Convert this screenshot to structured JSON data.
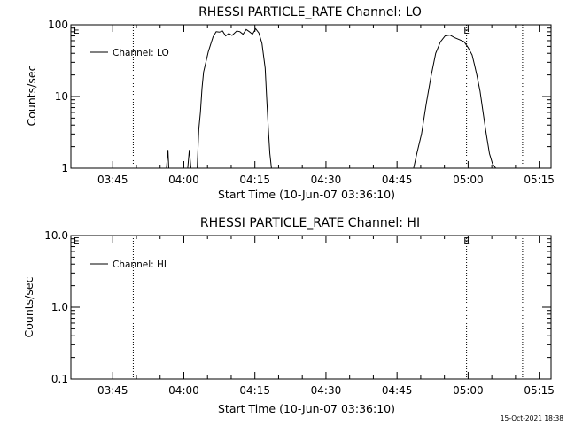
{
  "colors": {
    "background": "#ffffff",
    "foreground": "#000000"
  },
  "footer": {
    "timestamp": "15-Oct-2021 18:38"
  },
  "chart_data": [
    {
      "type": "line",
      "title": "RHESSI PARTICLE_RATE Channel: LO",
      "xlabel": "Start Time (10-Jun-07 03:36:10)",
      "ylabel": "Counts/sec",
      "yscale": "log",
      "xlim": [
        "03:36:10",
        "05:17:30"
      ],
      "ylim": [
        1,
        100
      ],
      "x_ticks": [
        "03:45",
        "04:00",
        "04:15",
        "04:30",
        "04:45",
        "05:00",
        "05:15"
      ],
      "y_ticks": [
        "1",
        "10",
        "100"
      ],
      "grid": false,
      "legend": {
        "placement": "top-left",
        "entries": [
          "Channel: LO"
        ]
      },
      "markers": [
        {
          "type": "dotted-vertical",
          "x": "03:49:20"
        },
        {
          "type": "dotted-vertical",
          "x": "04:59:40",
          "label": "E"
        },
        {
          "type": "dotted-vertical",
          "x": "05:11:30"
        }
      ],
      "corner_labels": [
        "E"
      ],
      "series": [
        {
          "name": "Channel: LO",
          "x": [
            "03:56:20",
            "03:56:40",
            "03:56:50",
            "03:57:00",
            "04:00:50",
            "04:01:10",
            "04:01:30",
            "04:01:40",
            "04:02:50",
            "04:03:00",
            "04:03:10",
            "04:03:30",
            "04:03:50",
            "04:04:10",
            "04:05:10",
            "04:06:10",
            "04:06:50",
            "04:07:30",
            "04:08:10",
            "04:08:50",
            "04:09:30",
            "04:10:10",
            "04:11:10",
            "04:11:50",
            "04:12:30",
            "04:13:10",
            "04:13:50",
            "04:14:30",
            "04:15:10",
            "04:15:50",
            "04:16:30",
            "04:17:10",
            "04:17:30",
            "04:17:50",
            "04:18:10",
            "04:18:30",
            "04:48:30",
            "04:49:10",
            "04:50:10",
            "04:51:10",
            "04:52:10",
            "04:53:10",
            "04:54:10",
            "04:55:10",
            "04:56:10",
            "04:57:10",
            "04:58:10",
            "04:59:10",
            "05:00:00",
            "05:00:50",
            "05:01:20",
            "05:01:50",
            "05:02:30",
            "05:03:10",
            "05:03:50",
            "05:04:30",
            "05:05:10",
            "05:05:50",
            "05:06:20"
          ],
          "y": [
            1,
            1.8,
            1,
            1,
            1,
            1.8,
            1,
            1,
            1,
            1.9,
            3.5,
            6,
            13,
            22,
            42,
            68,
            80,
            79,
            82,
            70,
            76,
            71,
            82,
            80,
            74,
            86,
            80,
            74,
            88,
            77,
            55,
            25,
            9,
            3.5,
            1.6,
            1,
            1,
            1.6,
            3,
            8,
            19,
            40,
            58,
            70,
            72,
            66,
            62,
            58,
            48,
            38,
            28,
            20,
            12,
            6,
            3,
            1.6,
            1.15,
            1,
            1
          ]
        }
      ]
    },
    {
      "type": "line",
      "title": "RHESSI PARTICLE_RATE Channel: HI",
      "xlabel": "Start Time (10-Jun-07 03:36:10)",
      "ylabel": "Counts/sec",
      "yscale": "log",
      "xlim": [
        "03:36:10",
        "05:17:30"
      ],
      "ylim": [
        0.1,
        10
      ],
      "x_ticks": [
        "03:45",
        "04:00",
        "04:15",
        "04:30",
        "04:45",
        "05:00",
        "05:15"
      ],
      "y_ticks": [
        "0.1",
        "1.0",
        "10.0"
      ],
      "grid": false,
      "legend": {
        "placement": "top-left",
        "entries": [
          "Channel: HI"
        ]
      },
      "markers": [
        {
          "type": "dotted-vertical",
          "x": "03:49:20"
        },
        {
          "type": "dotted-vertical",
          "x": "04:59:40",
          "label": "E"
        },
        {
          "type": "dotted-vertical",
          "x": "05:11:30"
        }
      ],
      "corner_labels": [
        "E"
      ],
      "series": [
        {
          "name": "Channel: HI",
          "x": [],
          "y": []
        }
      ]
    }
  ]
}
